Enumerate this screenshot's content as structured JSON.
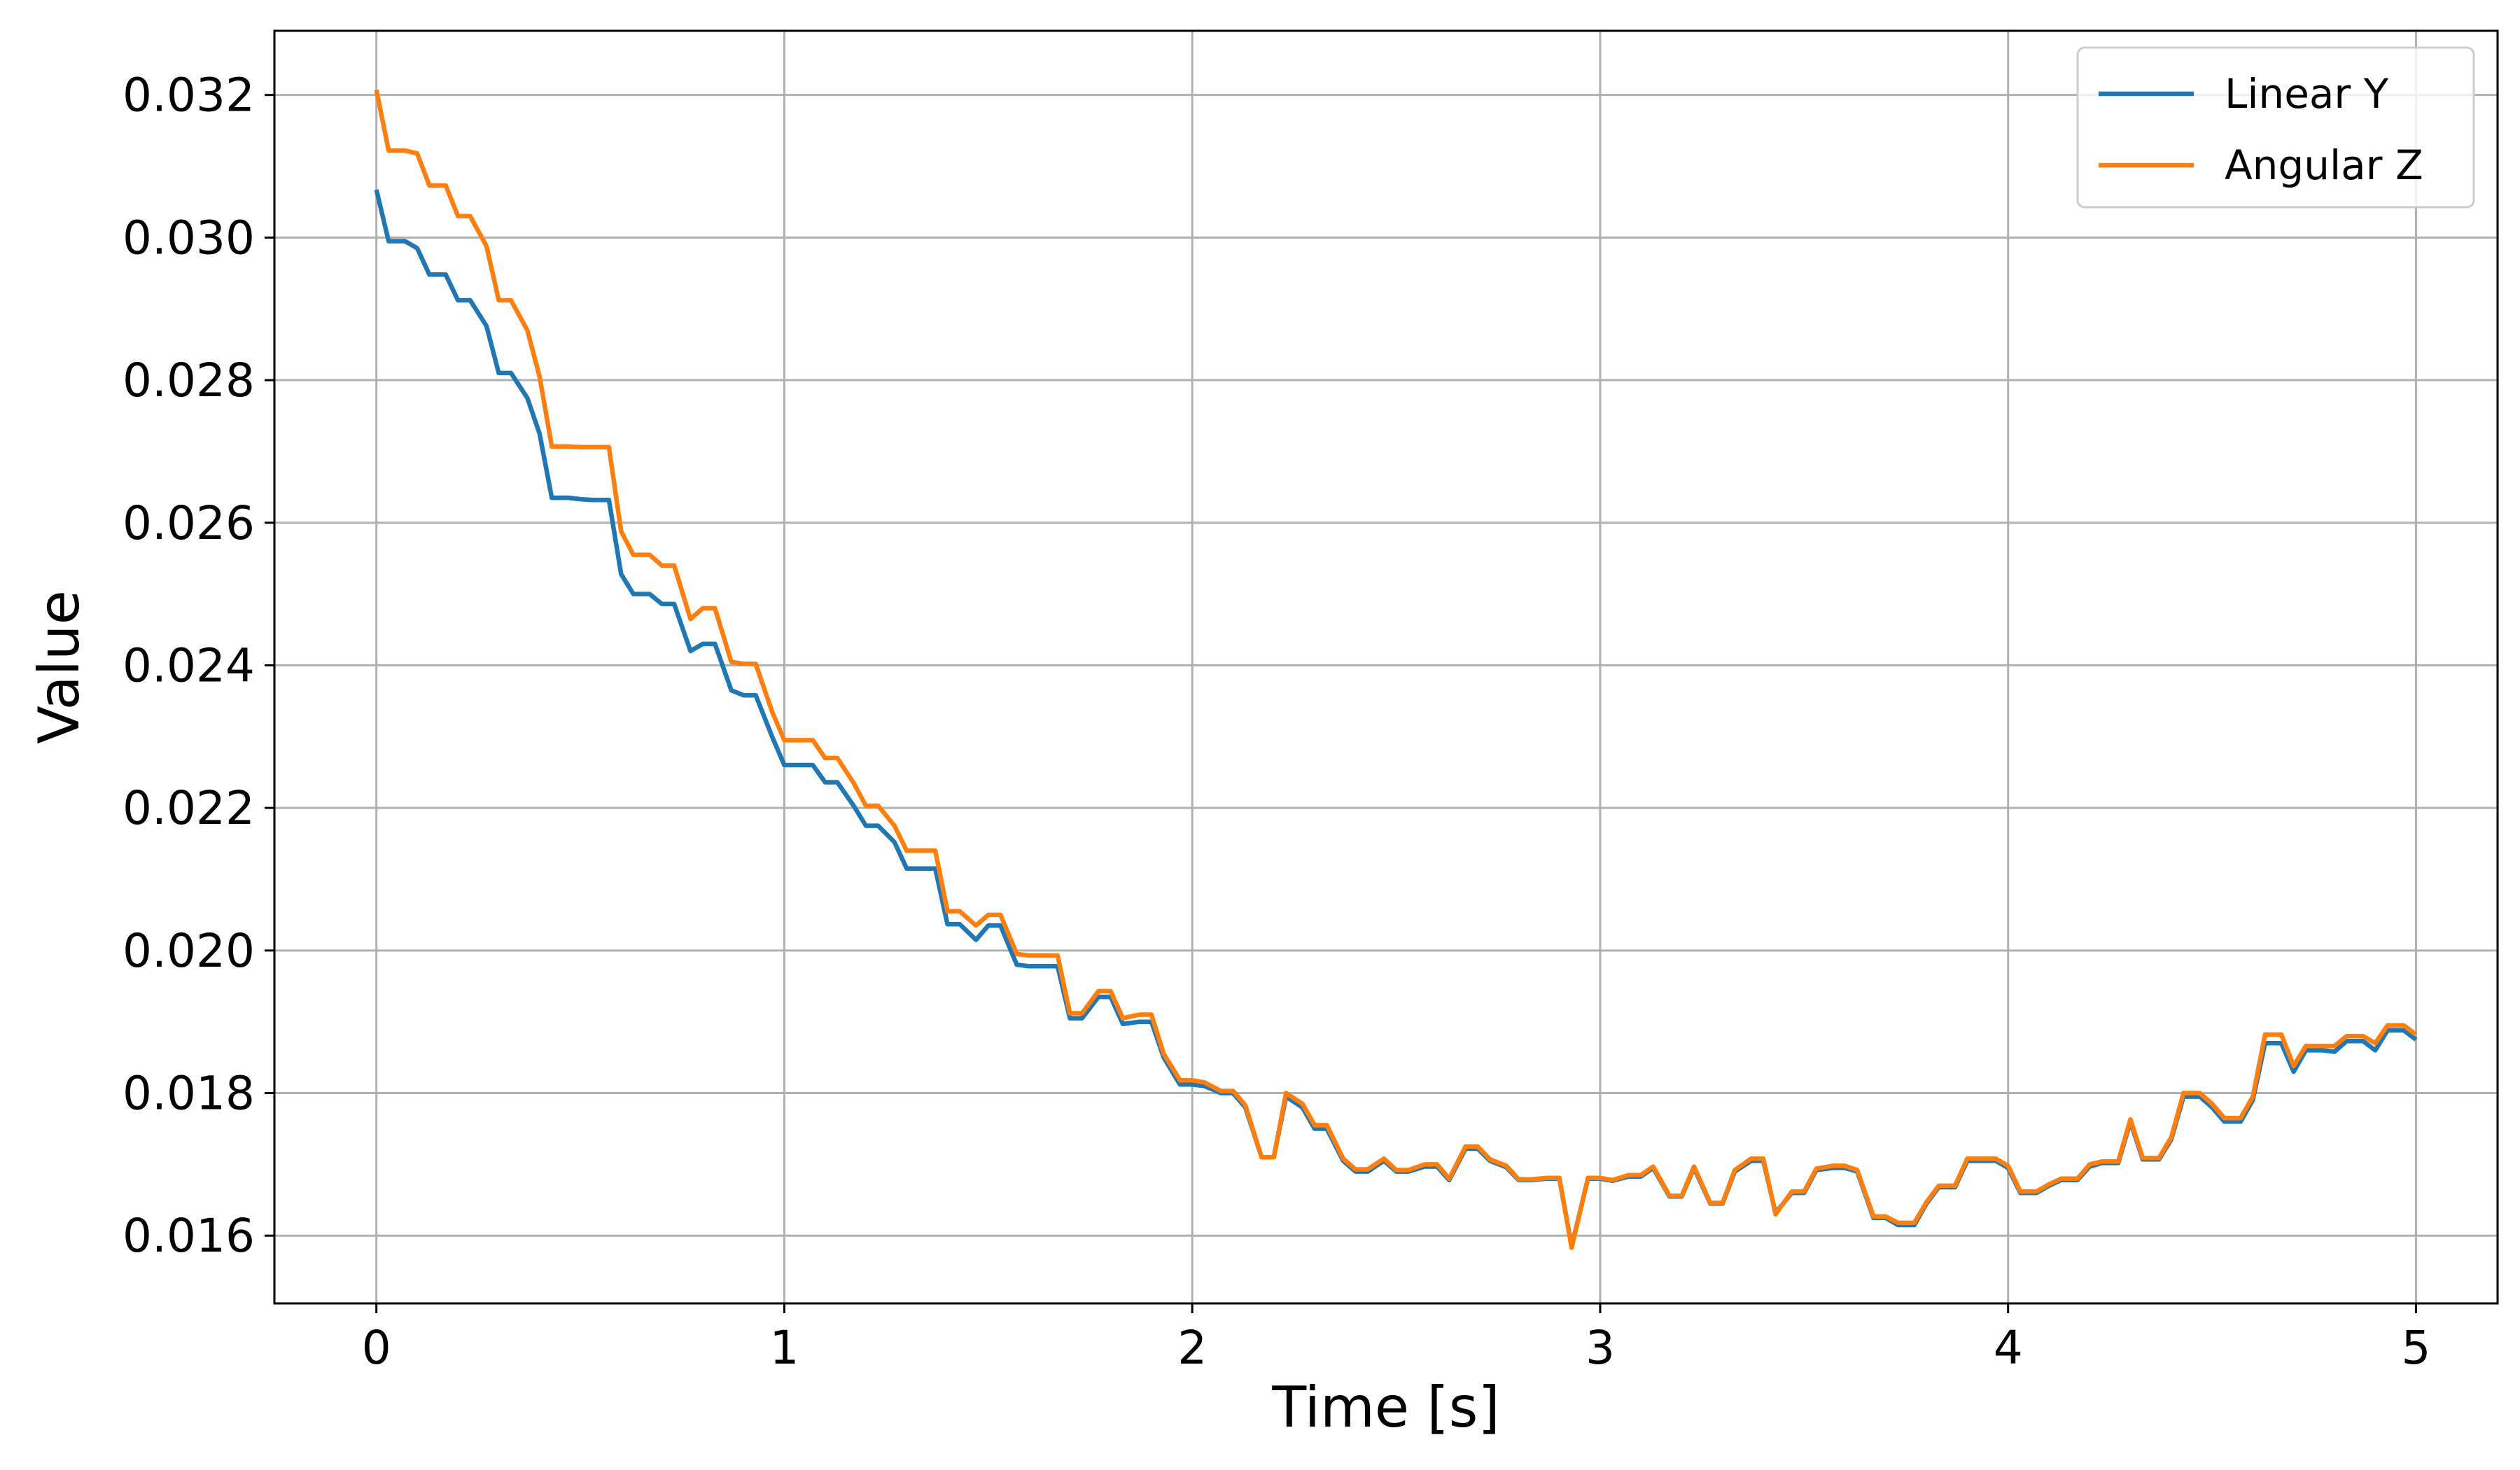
{
  "chart_data": {
    "type": "line",
    "title": "",
    "xlabel": "Time [s]",
    "ylabel": "Value",
    "xlim": [
      -0.25,
      5.2
    ],
    "ylim": [
      0.01505,
      0.0329
    ],
    "xticks": [
      0,
      1,
      2,
      3,
      4,
      5
    ],
    "xtick_labels": [
      "0",
      "1",
      "2",
      "3",
      "4",
      "5"
    ],
    "yticks": [
      0.016,
      0.018,
      0.02,
      0.022,
      0.024,
      0.026,
      0.028,
      0.03,
      0.032
    ],
    "ytick_labels": [
      "0.016",
      "0.018",
      "0.020",
      "0.022",
      "0.024",
      "0.026",
      "0.028",
      "0.030",
      "0.032"
    ],
    "grid": true,
    "legend_position": "top-right",
    "series": [
      {
        "name": "Linear Y",
        "color": "#1f77b4",
        "points": [
          [
            0.0,
            0.03067
          ],
          [
            0.03,
            0.02995
          ],
          [
            0.07,
            0.02995
          ],
          [
            0.1,
            0.02985
          ],
          [
            0.13,
            0.02948
          ],
          [
            0.17,
            0.02948
          ],
          [
            0.2,
            0.02912
          ],
          [
            0.23,
            0.02912
          ],
          [
            0.27,
            0.02876
          ],
          [
            0.3,
            0.0281
          ],
          [
            0.33,
            0.0281
          ],
          [
            0.37,
            0.02775
          ],
          [
            0.4,
            0.02725
          ],
          [
            0.43,
            0.02635
          ],
          [
            0.47,
            0.02635
          ],
          [
            0.5,
            0.02633
          ],
          [
            0.53,
            0.02632
          ],
          [
            0.57,
            0.02632
          ],
          [
            0.6,
            0.02528
          ],
          [
            0.63,
            0.025
          ],
          [
            0.67,
            0.025
          ],
          [
            0.7,
            0.02486
          ],
          [
            0.73,
            0.02486
          ],
          [
            0.77,
            0.0242
          ],
          [
            0.8,
            0.0243
          ],
          [
            0.83,
            0.0243
          ],
          [
            0.87,
            0.02365
          ],
          [
            0.9,
            0.02358
          ],
          [
            0.93,
            0.02358
          ],
          [
            0.97,
            0.023
          ],
          [
            1.0,
            0.0226
          ],
          [
            1.03,
            0.0226
          ],
          [
            1.07,
            0.0226
          ],
          [
            1.1,
            0.02236
          ],
          [
            1.13,
            0.02236
          ],
          [
            1.17,
            0.02203
          ],
          [
            1.2,
            0.02175
          ],
          [
            1.23,
            0.02175
          ],
          [
            1.27,
            0.02152
          ],
          [
            1.3,
            0.02115
          ],
          [
            1.33,
            0.02115
          ],
          [
            1.37,
            0.02115
          ],
          [
            1.4,
            0.02037
          ],
          [
            1.43,
            0.02037
          ],
          [
            1.47,
            0.02015
          ],
          [
            1.5,
            0.02035
          ],
          [
            1.53,
            0.02035
          ],
          [
            1.57,
            0.0198
          ],
          [
            1.6,
            0.01978
          ],
          [
            1.63,
            0.01978
          ],
          [
            1.67,
            0.01978
          ],
          [
            1.7,
            0.01905
          ],
          [
            1.73,
            0.01905
          ],
          [
            1.77,
            0.01935
          ],
          [
            1.8,
            0.01935
          ],
          [
            1.83,
            0.01897
          ],
          [
            1.87,
            0.019
          ],
          [
            1.9,
            0.019
          ],
          [
            1.93,
            0.0185
          ],
          [
            1.97,
            0.01812
          ],
          [
            2.0,
            0.01812
          ],
          [
            2.03,
            0.0181
          ],
          [
            2.07,
            0.018
          ],
          [
            2.1,
            0.018
          ],
          [
            2.13,
            0.0178
          ],
          [
            2.17,
            0.0171
          ],
          [
            2.2,
            0.0171
          ],
          [
            2.23,
            0.01795
          ],
          [
            2.27,
            0.0178
          ],
          [
            2.3,
            0.0175
          ],
          [
            2.33,
            0.0175
          ],
          [
            2.37,
            0.01705
          ],
          [
            2.4,
            0.0169
          ],
          [
            2.43,
            0.0169
          ],
          [
            2.47,
            0.01705
          ],
          [
            2.5,
            0.0169
          ],
          [
            2.53,
            0.0169
          ],
          [
            2.57,
            0.01697
          ],
          [
            2.6,
            0.01697
          ],
          [
            2.63,
            0.01678
          ],
          [
            2.67,
            0.01722
          ],
          [
            2.7,
            0.01722
          ],
          [
            2.73,
            0.01705
          ],
          [
            2.77,
            0.01696
          ],
          [
            2.8,
            0.01678
          ],
          [
            2.83,
            0.01678
          ],
          [
            2.87,
            0.0168
          ],
          [
            2.9,
            0.0168
          ],
          [
            2.93,
            0.01585
          ],
          [
            2.97,
            0.0168
          ],
          [
            3.0,
            0.0168
          ],
          [
            3.03,
            0.01677
          ],
          [
            3.07,
            0.01683
          ],
          [
            3.1,
            0.01683
          ],
          [
            3.13,
            0.01695
          ],
          [
            3.17,
            0.01655
          ],
          [
            3.2,
            0.01655
          ],
          [
            3.23,
            0.01695
          ],
          [
            3.27,
            0.01645
          ],
          [
            3.3,
            0.01645
          ],
          [
            3.33,
            0.0169
          ],
          [
            3.37,
            0.01705
          ],
          [
            3.4,
            0.01705
          ],
          [
            3.43,
            0.01632
          ],
          [
            3.47,
            0.0166
          ],
          [
            3.5,
            0.0166
          ],
          [
            3.53,
            0.01692
          ],
          [
            3.57,
            0.01695
          ],
          [
            3.6,
            0.01695
          ],
          [
            3.63,
            0.0169
          ],
          [
            3.67,
            0.01625
          ],
          [
            3.7,
            0.01625
          ],
          [
            3.73,
            0.01615
          ],
          [
            3.77,
            0.01615
          ],
          [
            3.8,
            0.01645
          ],
          [
            3.83,
            0.01668
          ],
          [
            3.87,
            0.01668
          ],
          [
            3.9,
            0.01705
          ],
          [
            3.93,
            0.01705
          ],
          [
            3.97,
            0.01705
          ],
          [
            4.0,
            0.01695
          ],
          [
            4.03,
            0.0166
          ],
          [
            4.07,
            0.0166
          ],
          [
            4.1,
            0.0167
          ],
          [
            4.13,
            0.01678
          ],
          [
            4.17,
            0.01678
          ],
          [
            4.2,
            0.01697
          ],
          [
            4.23,
            0.01702
          ],
          [
            4.27,
            0.01702
          ],
          [
            4.3,
            0.0176
          ],
          [
            4.33,
            0.01707
          ],
          [
            4.37,
            0.01707
          ],
          [
            4.4,
            0.01735
          ],
          [
            4.43,
            0.01795
          ],
          [
            4.47,
            0.01795
          ],
          [
            4.5,
            0.0178
          ],
          [
            4.53,
            0.0176
          ],
          [
            4.57,
            0.0176
          ],
          [
            4.6,
            0.0179
          ],
          [
            4.63,
            0.0187
          ],
          [
            4.67,
            0.0187
          ],
          [
            4.7,
            0.0183
          ],
          [
            4.73,
            0.0186
          ],
          [
            4.77,
            0.0186
          ],
          [
            4.8,
            0.01858
          ],
          [
            4.83,
            0.01873
          ],
          [
            4.87,
            0.01873
          ],
          [
            4.9,
            0.0186
          ],
          [
            4.93,
            0.01888
          ],
          [
            4.97,
            0.01888
          ],
          [
            5.0,
            0.01875
          ]
        ]
      },
      {
        "name": "Angular Z",
        "color": "#ff7f0e",
        "points": [
          [
            0.0,
            0.03207
          ],
          [
            0.03,
            0.03122
          ],
          [
            0.07,
            0.03122
          ],
          [
            0.1,
            0.03118
          ],
          [
            0.13,
            0.03073
          ],
          [
            0.17,
            0.03073
          ],
          [
            0.2,
            0.0303
          ],
          [
            0.23,
            0.0303
          ],
          [
            0.27,
            0.02988
          ],
          [
            0.3,
            0.02912
          ],
          [
            0.33,
            0.02912
          ],
          [
            0.37,
            0.0287
          ],
          [
            0.4,
            0.02805
          ],
          [
            0.43,
            0.02707
          ],
          [
            0.47,
            0.02707
          ],
          [
            0.5,
            0.02706
          ],
          [
            0.53,
            0.02706
          ],
          [
            0.57,
            0.02706
          ],
          [
            0.6,
            0.02588
          ],
          [
            0.63,
            0.02555
          ],
          [
            0.67,
            0.02555
          ],
          [
            0.7,
            0.0254
          ],
          [
            0.73,
            0.0254
          ],
          [
            0.77,
            0.02465
          ],
          [
            0.8,
            0.0248
          ],
          [
            0.83,
            0.0248
          ],
          [
            0.87,
            0.02405
          ],
          [
            0.9,
            0.02402
          ],
          [
            0.93,
            0.02402
          ],
          [
            0.97,
            0.02335
          ],
          [
            1.0,
            0.02295
          ],
          [
            1.03,
            0.02295
          ],
          [
            1.07,
            0.02295
          ],
          [
            1.1,
            0.0227
          ],
          [
            1.13,
            0.0227
          ],
          [
            1.17,
            0.02235
          ],
          [
            1.2,
            0.02203
          ],
          [
            1.23,
            0.02203
          ],
          [
            1.27,
            0.02175
          ],
          [
            1.3,
            0.0214
          ],
          [
            1.33,
            0.0214
          ],
          [
            1.37,
            0.0214
          ],
          [
            1.4,
            0.02055
          ],
          [
            1.43,
            0.02055
          ],
          [
            1.47,
            0.02035
          ],
          [
            1.5,
            0.0205
          ],
          [
            1.53,
            0.0205
          ],
          [
            1.57,
            0.01995
          ],
          [
            1.6,
            0.01993
          ],
          [
            1.63,
            0.01993
          ],
          [
            1.67,
            0.01993
          ],
          [
            1.7,
            0.01912
          ],
          [
            1.73,
            0.01912
          ],
          [
            1.77,
            0.01943
          ],
          [
            1.8,
            0.01943
          ],
          [
            1.83,
            0.01905
          ],
          [
            1.87,
            0.0191
          ],
          [
            1.9,
            0.0191
          ],
          [
            1.93,
            0.01855
          ],
          [
            1.97,
            0.01818
          ],
          [
            2.0,
            0.01818
          ],
          [
            2.03,
            0.01815
          ],
          [
            2.07,
            0.01803
          ],
          [
            2.1,
            0.01803
          ],
          [
            2.13,
            0.01783
          ],
          [
            2.17,
            0.0171
          ],
          [
            2.2,
            0.0171
          ],
          [
            2.23,
            0.018
          ],
          [
            2.27,
            0.01785
          ],
          [
            2.3,
            0.01755
          ],
          [
            2.33,
            0.01755
          ],
          [
            2.37,
            0.01708
          ],
          [
            2.4,
            0.01693
          ],
          [
            2.43,
            0.01693
          ],
          [
            2.47,
            0.01708
          ],
          [
            2.5,
            0.01692
          ],
          [
            2.53,
            0.01692
          ],
          [
            2.57,
            0.017
          ],
          [
            2.6,
            0.017
          ],
          [
            2.63,
            0.0168
          ],
          [
            2.67,
            0.01725
          ],
          [
            2.7,
            0.01725
          ],
          [
            2.73,
            0.01707
          ],
          [
            2.77,
            0.01698
          ],
          [
            2.8,
            0.01679
          ],
          [
            2.83,
            0.01679
          ],
          [
            2.87,
            0.01681
          ],
          [
            2.9,
            0.01681
          ],
          [
            2.93,
            0.01583
          ],
          [
            2.97,
            0.01681
          ],
          [
            3.0,
            0.01681
          ],
          [
            3.03,
            0.01678
          ],
          [
            3.07,
            0.01685
          ],
          [
            3.1,
            0.01685
          ],
          [
            3.13,
            0.01697
          ],
          [
            3.17,
            0.01656
          ],
          [
            3.2,
            0.01656
          ],
          [
            3.23,
            0.01697
          ],
          [
            3.27,
            0.01646
          ],
          [
            3.3,
            0.01646
          ],
          [
            3.33,
            0.01692
          ],
          [
            3.37,
            0.01708
          ],
          [
            3.4,
            0.01708
          ],
          [
            3.43,
            0.0163
          ],
          [
            3.47,
            0.01662
          ],
          [
            3.5,
            0.01662
          ],
          [
            3.53,
            0.01694
          ],
          [
            3.57,
            0.01698
          ],
          [
            3.6,
            0.01698
          ],
          [
            3.63,
            0.01692
          ],
          [
            3.67,
            0.01627
          ],
          [
            3.7,
            0.01627
          ],
          [
            3.73,
            0.01618
          ],
          [
            3.77,
            0.01618
          ],
          [
            3.8,
            0.01647
          ],
          [
            3.83,
            0.0167
          ],
          [
            3.87,
            0.0167
          ],
          [
            3.9,
            0.01708
          ],
          [
            3.93,
            0.01708
          ],
          [
            3.97,
            0.01708
          ],
          [
            4.0,
            0.01698
          ],
          [
            4.03,
            0.01662
          ],
          [
            4.07,
            0.01662
          ],
          [
            4.1,
            0.01672
          ],
          [
            4.13,
            0.0168
          ],
          [
            4.17,
            0.0168
          ],
          [
            4.2,
            0.017
          ],
          [
            4.23,
            0.01704
          ],
          [
            4.27,
            0.01704
          ],
          [
            4.3,
            0.01763
          ],
          [
            4.33,
            0.01709
          ],
          [
            4.37,
            0.01709
          ],
          [
            4.4,
            0.01738
          ],
          [
            4.43,
            0.018
          ],
          [
            4.47,
            0.018
          ],
          [
            4.5,
            0.01785
          ],
          [
            4.53,
            0.01765
          ],
          [
            4.57,
            0.01765
          ],
          [
            4.6,
            0.01795
          ],
          [
            4.63,
            0.01882
          ],
          [
            4.67,
            0.01882
          ],
          [
            4.7,
            0.01838
          ],
          [
            4.73,
            0.01866
          ],
          [
            4.77,
            0.01866
          ],
          [
            4.8,
            0.01866
          ],
          [
            4.83,
            0.0188
          ],
          [
            4.87,
            0.0188
          ],
          [
            4.9,
            0.0187
          ],
          [
            4.93,
            0.01895
          ],
          [
            4.97,
            0.01895
          ],
          [
            5.0,
            0.01882
          ]
        ]
      }
    ]
  }
}
